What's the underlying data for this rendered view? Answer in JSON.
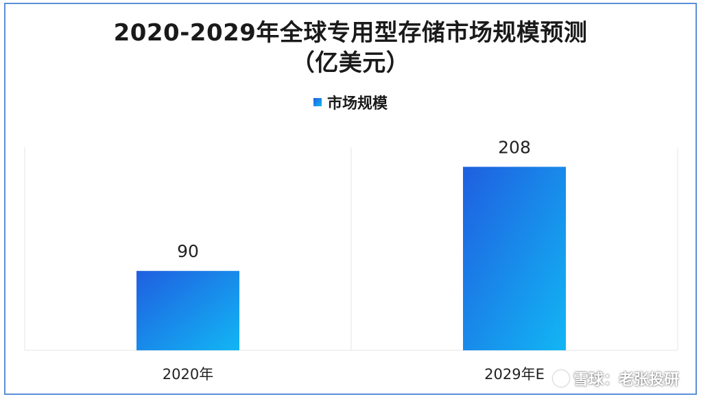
{
  "chart_data": {
    "type": "bar",
    "title": "2020-2029年全球专用型存储市场规模预测",
    "subtitle": "（亿美元）",
    "categories": [
      "2020年",
      "2029年E"
    ],
    "series": [
      {
        "name": "市场规模",
        "values": [
          90,
          208
        ]
      }
    ],
    "data_labels": [
      "90",
      "208"
    ],
    "ylim": [
      0,
      230
    ],
    "grid": false,
    "legend_position": "top-center",
    "colors": {
      "bar_start": "#1f5fe0",
      "bar_end": "#12b6f4",
      "frame": "#5a8fd6"
    }
  },
  "watermark": {
    "text": "雪球：老张投研",
    "icon": "snowball-logo-icon"
  }
}
